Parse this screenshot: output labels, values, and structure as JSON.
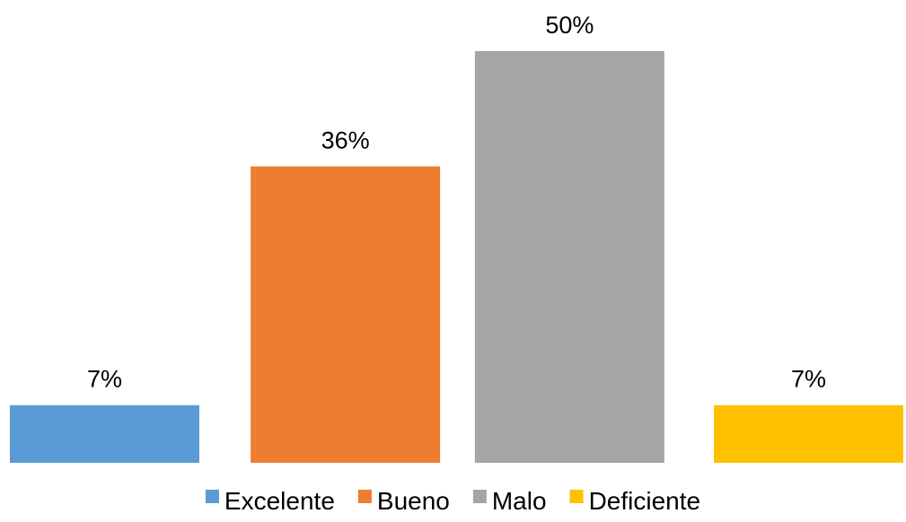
{
  "chart_data": {
    "type": "bar",
    "categories": [
      "Excelente",
      "Bueno",
      "Malo",
      "Deficiente"
    ],
    "values": [
      7,
      36,
      50,
      7
    ],
    "value_labels": [
      "7%",
      "36%",
      "50%",
      "7%"
    ],
    "colors": [
      "#5B9BD5",
      "#ED7D31",
      "#A5A5A5",
      "#FFC000"
    ],
    "title": "",
    "xlabel": "",
    "ylabel": "",
    "ylim": [
      0,
      50
    ],
    "grid": false,
    "axes_visible": false,
    "legend_position": "bottom",
    "legend": [
      "Excelente",
      "Bueno",
      "Malo",
      "Deficiente"
    ]
  }
}
